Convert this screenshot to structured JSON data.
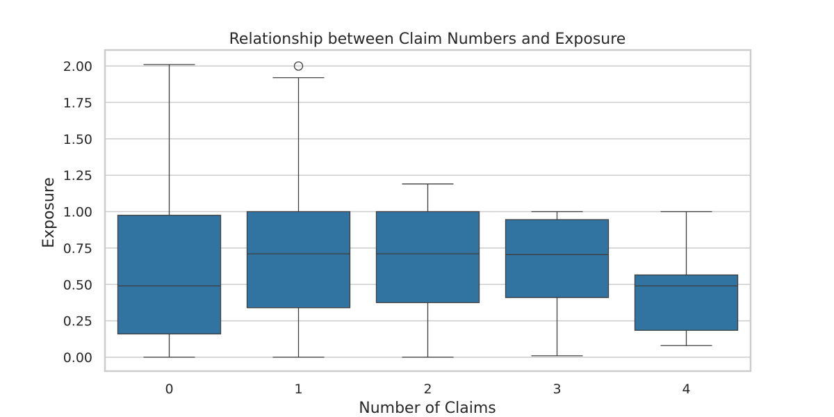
{
  "chart_data": {
    "type": "box",
    "title": "Relationship between Claim Numbers and Exposure",
    "xlabel": "Number of Claims",
    "ylabel": "Exposure",
    "categories": [
      "0",
      "1",
      "2",
      "3",
      "4"
    ],
    "y_ticks": [
      "0.00",
      "0.25",
      "0.50",
      "0.75",
      "1.00",
      "1.25",
      "1.50",
      "1.75",
      "2.00"
    ],
    "ylim": [
      -0.1,
      2.1
    ],
    "grid": true,
    "boxes": [
      {
        "category": "0",
        "whisker_low": 0.0,
        "q1": 0.16,
        "median": 0.49,
        "q3": 0.975,
        "whisker_high": 2.01,
        "outliers": []
      },
      {
        "category": "1",
        "whisker_low": 0.0,
        "q1": 0.34,
        "median": 0.71,
        "q3": 1.0,
        "whisker_high": 1.92,
        "outliers": [
          2.0
        ]
      },
      {
        "category": "2",
        "whisker_low": 0.0,
        "q1": 0.375,
        "median": 0.71,
        "q3": 1.0,
        "whisker_high": 1.19,
        "outliers": []
      },
      {
        "category": "3",
        "whisker_low": 0.01,
        "q1": 0.41,
        "median": 0.705,
        "q3": 0.945,
        "whisker_high": 1.0,
        "outliers": []
      },
      {
        "category": "4",
        "whisker_low": 0.08,
        "q1": 0.185,
        "median": 0.49,
        "q3": 0.565,
        "whisker_high": 1.0,
        "outliers": []
      }
    ],
    "colors": {
      "box_fill": "#3274a1",
      "line": "#3d3d3d",
      "grid": "#cccccc",
      "frame": "#cccccc"
    }
  }
}
